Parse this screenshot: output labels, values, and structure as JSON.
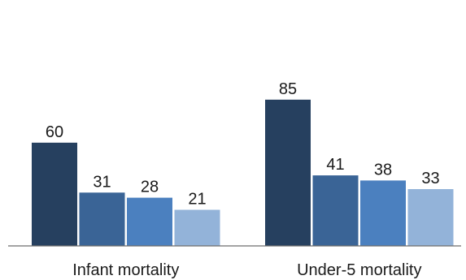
{
  "chart_data": {
    "type": "bar",
    "categories": [
      "Infant mortality",
      "Under-5 mortality"
    ],
    "series": [
      {
        "values": [
          60,
          85
        ],
        "color": "#26405f"
      },
      {
        "values": [
          31,
          41
        ],
        "color": "#3a6496"
      },
      {
        "values": [
          28,
          38
        ],
        "color": "#4b80bf"
      },
      {
        "values": [
          21,
          33
        ],
        "color": "#93b3d9"
      }
    ],
    "title": "",
    "xlabel": "",
    "ylabel": "",
    "ylim": [
      0,
      100
    ],
    "grid": false,
    "legend": "none",
    "show_value_labels": true
  }
}
